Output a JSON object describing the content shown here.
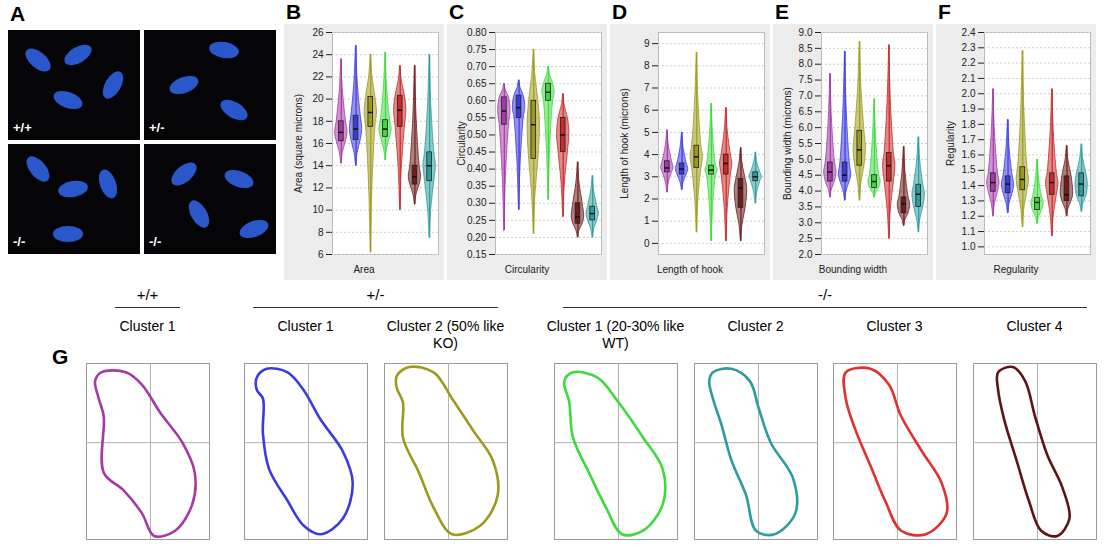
{
  "panel_a": {
    "letter": "A",
    "labels": [
      "+/+",
      "+/-",
      "-/-",
      "-/-"
    ]
  },
  "chart_data": [
    {
      "type": "box",
      "letter": "B",
      "ylabel": "Area (square microns)",
      "xlabel": "Area",
      "ylim": [
        6,
        26
      ],
      "yticks": [
        6,
        8,
        10,
        12,
        14,
        16,
        18,
        20,
        22,
        24,
        26
      ],
      "grid": true,
      "series": [
        {
          "color": "#a33aa8",
          "min": 14.2,
          "q1": 16.2,
          "median": 17,
          "q3": 18,
          "max": 23.6
        },
        {
          "color": "#3b3be0",
          "min": 14,
          "q1": 16.3,
          "median": 17.3,
          "q3": 18.5,
          "max": 24.8
        },
        {
          "color": "#9c9a1c",
          "min": 6.2,
          "q1": 17.5,
          "median": 18.8,
          "q3": 20.2,
          "max": 24
        },
        {
          "color": "#3fd83f",
          "min": 14.5,
          "q1": 16.6,
          "median": 17.3,
          "q3": 18.1,
          "max": 24.2
        },
        {
          "color": "#c92a2a",
          "min": 10,
          "q1": 17.5,
          "median": 19,
          "q3": 20.3,
          "max": 23
        },
        {
          "color": "#6e1c1c",
          "min": 10.5,
          "q1": 12.3,
          "median": 13,
          "q3": 14,
          "max": 23
        },
        {
          "color": "#2e9c9c",
          "min": 7.5,
          "q1": 12.6,
          "median": 14,
          "q3": 15.2,
          "max": 24
        }
      ]
    },
    {
      "type": "box",
      "letter": "C",
      "ylabel": "Circularity",
      "xlabel": "Circularity",
      "ylim": [
        0.15,
        0.8
      ],
      "yticks": [
        0.15,
        {
          "value": 0.2,
          "label": "0.20"
        },
        0.25,
        {
          "value": 0.3,
          "label": "0.30"
        },
        0.35,
        {
          "value": 0.4,
          "label": "0.40"
        },
        0.45,
        {
          "value": 0.5,
          "label": "0.50"
        },
        0.55,
        {
          "value": 0.6,
          "label": "0.60"
        },
        0.65,
        {
          "value": 0.7,
          "label": "0.70"
        },
        0.75,
        {
          "value": 0.8,
          "label": "0.80"
        }
      ],
      "grid": true,
      "series": [
        {
          "color": "#a33aa8",
          "min": 0.22,
          "q1": 0.53,
          "median": 0.57,
          "q3": 0.61,
          "max": 0.65
        },
        {
          "color": "#3b3be0",
          "min": 0.28,
          "q1": 0.55,
          "median": 0.58,
          "q3": 0.615,
          "max": 0.66
        },
        {
          "color": "#9c9a1c",
          "min": 0.21,
          "q1": 0.43,
          "median": 0.53,
          "q3": 0.6,
          "max": 0.75
        },
        {
          "color": "#3fd83f",
          "min": 0.31,
          "q1": 0.6,
          "median": 0.625,
          "q3": 0.65,
          "max": 0.7
        },
        {
          "color": "#c92a2a",
          "min": 0.26,
          "q1": 0.45,
          "median": 0.5,
          "q3": 0.55,
          "max": 0.62
        },
        {
          "color": "#6e1c1c",
          "min": 0.2,
          "q1": 0.24,
          "median": 0.26,
          "q3": 0.3,
          "max": 0.42
        },
        {
          "color": "#2e9c9c",
          "min": 0.2,
          "q1": 0.25,
          "median": 0.27,
          "q3": 0.29,
          "max": 0.38
        }
      ]
    },
    {
      "type": "box",
      "letter": "D",
      "ylabel": "Length of hook (microns)",
      "xlabel": "Length of hook",
      "ylim": [
        -0.5,
        9.5
      ],
      "yticks": [
        0,
        1,
        2,
        3,
        4,
        5,
        6,
        7,
        8,
        9
      ],
      "grid": true,
      "series": [
        {
          "color": "#a33aa8",
          "min": 2.3,
          "q1": 3.2,
          "median": 3.4,
          "q3": 3.7,
          "max": 5.1
        },
        {
          "color": "#3b3be0",
          "min": 2.4,
          "q1": 3.1,
          "median": 3.35,
          "q3": 3.6,
          "max": 5
        },
        {
          "color": "#9c9a1c",
          "min": 0.5,
          "q1": 3.4,
          "median": 3.9,
          "q3": 4.4,
          "max": 8.6
        },
        {
          "color": "#3fd83f",
          "min": 0.1,
          "q1": 3.1,
          "median": 3.3,
          "q3": 3.5,
          "max": 6.3
        },
        {
          "color": "#c92a2a",
          "min": 0.1,
          "q1": 3.1,
          "median": 3.6,
          "q3": 4,
          "max": 6.1
        },
        {
          "color": "#6e1c1c",
          "min": 0.1,
          "q1": 1.6,
          "median": 2.5,
          "q3": 2.9,
          "max": 4.3
        },
        {
          "color": "#2e9c9c",
          "min": 1.8,
          "q1": 2.8,
          "median": 3,
          "q3": 3.2,
          "max": 4.1
        }
      ]
    },
    {
      "type": "box",
      "letter": "E",
      "ylabel": "Bounding width (microns)",
      "xlabel": "Bounding width",
      "ylim": [
        2,
        9
      ],
      "yticks": [
        {
          "value": 2,
          "label": "2.0"
        },
        2.5,
        {
          "value": 3,
          "label": "3.0"
        },
        3.5,
        {
          "value": 4,
          "label": "4.0"
        },
        4.5,
        {
          "value": 5,
          "label": "5.0"
        },
        5.5,
        {
          "value": 6,
          "label": "6.0"
        },
        6.5,
        {
          "value": 7,
          "label": "7.0"
        },
        7.5,
        {
          "value": 8,
          "label": "8.0"
        },
        8.5,
        {
          "value": 9,
          "label": "9.0"
        }
      ],
      "grid": true,
      "series": [
        {
          "color": "#a33aa8",
          "min": 3.8,
          "q1": 4.3,
          "median": 4.6,
          "q3": 4.9,
          "max": 7.7
        },
        {
          "color": "#3b3be0",
          "min": 3.7,
          "q1": 4.3,
          "median": 4.5,
          "q3": 4.9,
          "max": 8.4
        },
        {
          "color": "#9c9a1c",
          "min": 3.7,
          "q1": 4.8,
          "median": 5.3,
          "q3": 5.9,
          "max": 8.7
        },
        {
          "color": "#3fd83f",
          "min": 3.8,
          "q1": 4.1,
          "median": 4.3,
          "q3": 4.5,
          "max": 6.9
        },
        {
          "color": "#c92a2a",
          "min": 2.5,
          "q1": 4.3,
          "median": 4.8,
          "q3": 5.2,
          "max": 8.6
        },
        {
          "color": "#6e1c1c",
          "min": 2.9,
          "q1": 3.3,
          "median": 3.6,
          "q3": 3.8,
          "max": 5.4
        },
        {
          "color": "#2e9c9c",
          "min": 2.7,
          "q1": 3.5,
          "median": 3.9,
          "q3": 4.2,
          "max": 5.7
        }
      ]
    },
    {
      "type": "box",
      "letter": "F",
      "ylabel": "Regularity",
      "xlabel": "Regularity",
      "ylim": [
        0.95,
        2.4
      ],
      "yticks": [
        {
          "value": 1,
          "label": "1.0"
        },
        1.1,
        1.2,
        1.3,
        1.4,
        1.5,
        1.6,
        1.7,
        1.8,
        1.9,
        {
          "value": 2,
          "label": "2.0"
        },
        2.1,
        2.2,
        2.3,
        2.4
      ],
      "grid": true,
      "series": [
        {
          "color": "#a33aa8",
          "min": 1.2,
          "q1": 1.36,
          "median": 1.42,
          "q3": 1.48,
          "max": 2.03
        },
        {
          "color": "#3b3be0",
          "min": 1.22,
          "q1": 1.35,
          "median": 1.41,
          "q3": 1.46,
          "max": 1.83
        },
        {
          "color": "#9c9a1c",
          "min": 1.13,
          "q1": 1.37,
          "median": 1.44,
          "q3": 1.52,
          "max": 2.28
        },
        {
          "color": "#3fd83f",
          "min": 1.15,
          "q1": 1.24,
          "median": 1.29,
          "q3": 1.32,
          "max": 1.57
        },
        {
          "color": "#c92a2a",
          "min": 1.07,
          "q1": 1.34,
          "median": 1.42,
          "q3": 1.48,
          "max": 2.03
        },
        {
          "color": "#6e1c1c",
          "min": 1.2,
          "q1": 1.3,
          "median": 1.34,
          "q3": 1.46,
          "max": 1.66
        },
        {
          "color": "#2e9c9c",
          "min": 1.23,
          "q1": 1.33,
          "median": 1.41,
          "q3": 1.48,
          "max": 1.67
        }
      ]
    }
  ],
  "panel_g": {
    "letter": "G",
    "groups": [
      {
        "genotype": "+/+",
        "clusters": [
          {
            "title": "Cluster 1",
            "color": "#a33aa8",
            "outline": [
              [
                0.07,
                0.1
              ],
              [
                0.12,
                0.05
              ],
              [
                0.32,
                0.05
              ],
              [
                0.45,
                0.12
              ],
              [
                0.6,
                0.28
              ],
              [
                0.78,
                0.45
              ],
              [
                0.88,
                0.62
              ],
              [
                0.86,
                0.8
              ],
              [
                0.72,
                0.95
              ],
              [
                0.55,
                0.98
              ],
              [
                0.45,
                0.85
              ],
              [
                0.3,
                0.72
              ],
              [
                0.14,
                0.62
              ],
              [
                0.14,
                0.3
              ],
              [
                0.1,
                0.2
              ]
            ]
          }
        ]
      },
      {
        "genotype": "+/-",
        "clusters": [
          {
            "title": "Cluster 1",
            "color": "#3b3be0",
            "outline": [
              [
                0.1,
                0.08
              ],
              [
                0.18,
                0.03
              ],
              [
                0.35,
                0.05
              ],
              [
                0.48,
                0.15
              ],
              [
                0.62,
                0.32
              ],
              [
                0.8,
                0.5
              ],
              [
                0.88,
                0.68
              ],
              [
                0.8,
                0.88
              ],
              [
                0.62,
                0.97
              ],
              [
                0.48,
                0.92
              ],
              [
                0.35,
                0.78
              ],
              [
                0.2,
                0.6
              ],
              [
                0.15,
                0.4
              ],
              [
                0.15,
                0.2
              ],
              [
                0.1,
                0.15
              ]
            ]
          },
          {
            "title": "Cluster 2 (50% like KO)",
            "color": "#9c9a1c",
            "outline": [
              [
                0.1,
                0.07
              ],
              [
                0.2,
                0.02
              ],
              [
                0.4,
                0.05
              ],
              [
                0.55,
                0.2
              ],
              [
                0.72,
                0.38
              ],
              [
                0.88,
                0.55
              ],
              [
                0.92,
                0.75
              ],
              [
                0.78,
                0.92
              ],
              [
                0.55,
                0.97
              ],
              [
                0.4,
                0.82
              ],
              [
                0.28,
                0.62
              ],
              [
                0.15,
                0.42
              ],
              [
                0.15,
                0.22
              ],
              [
                0.1,
                0.14
              ]
            ]
          }
        ]
      },
      {
        "genotype": "-/-",
        "clusters": [
          {
            "title": "Cluster 1 (20-30% like WT)",
            "color": "#3fd83f",
            "outline": [
              [
                0.08,
                0.1
              ],
              [
                0.15,
                0.05
              ],
              [
                0.35,
                0.08
              ],
              [
                0.52,
                0.22
              ],
              [
                0.72,
                0.42
              ],
              [
                0.88,
                0.6
              ],
              [
                0.88,
                0.8
              ],
              [
                0.72,
                0.95
              ],
              [
                0.55,
                0.97
              ],
              [
                0.42,
                0.82
              ],
              [
                0.28,
                0.62
              ],
              [
                0.15,
                0.42
              ],
              [
                0.12,
                0.22
              ]
            ]
          },
          {
            "title": "Cluster 2",
            "color": "#2e9c9c",
            "outline": [
              [
                0.15,
                0.05
              ],
              [
                0.3,
                0.03
              ],
              [
                0.45,
                0.1
              ],
              [
                0.52,
                0.25
              ],
              [
                0.62,
                0.45
              ],
              [
                0.8,
                0.65
              ],
              [
                0.82,
                0.85
              ],
              [
                0.65,
                0.97
              ],
              [
                0.5,
                0.95
              ],
              [
                0.42,
                0.75
              ],
              [
                0.3,
                0.55
              ],
              [
                0.22,
                0.35
              ],
              [
                0.15,
                0.2
              ],
              [
                0.12,
                0.1
              ]
            ]
          },
          {
            "title": "Cluster 3",
            "color": "#e03030",
            "outline": [
              [
                0.1,
                0.05
              ],
              [
                0.3,
                0.03
              ],
              [
                0.45,
                0.12
              ],
              [
                0.55,
                0.3
              ],
              [
                0.72,
                0.5
              ],
              [
                0.88,
                0.68
              ],
              [
                0.92,
                0.85
              ],
              [
                0.75,
                0.97
              ],
              [
                0.55,
                0.95
              ],
              [
                0.42,
                0.78
              ],
              [
                0.3,
                0.58
              ],
              [
                0.18,
                0.38
              ],
              [
                0.1,
                0.2
              ]
            ]
          },
          {
            "title": "Cluster 4",
            "color": "#5e1414",
            "outline": [
              [
                0.2,
                0.05
              ],
              [
                0.32,
                0.02
              ],
              [
                0.42,
                0.1
              ],
              [
                0.5,
                0.3
              ],
              [
                0.6,
                0.52
              ],
              [
                0.72,
                0.7
              ],
              [
                0.78,
                0.88
              ],
              [
                0.68,
                0.98
              ],
              [
                0.55,
                0.95
              ],
              [
                0.45,
                0.78
              ],
              [
                0.35,
                0.55
              ],
              [
                0.25,
                0.32
              ],
              [
                0.2,
                0.15
              ]
            ]
          }
        ]
      }
    ]
  }
}
